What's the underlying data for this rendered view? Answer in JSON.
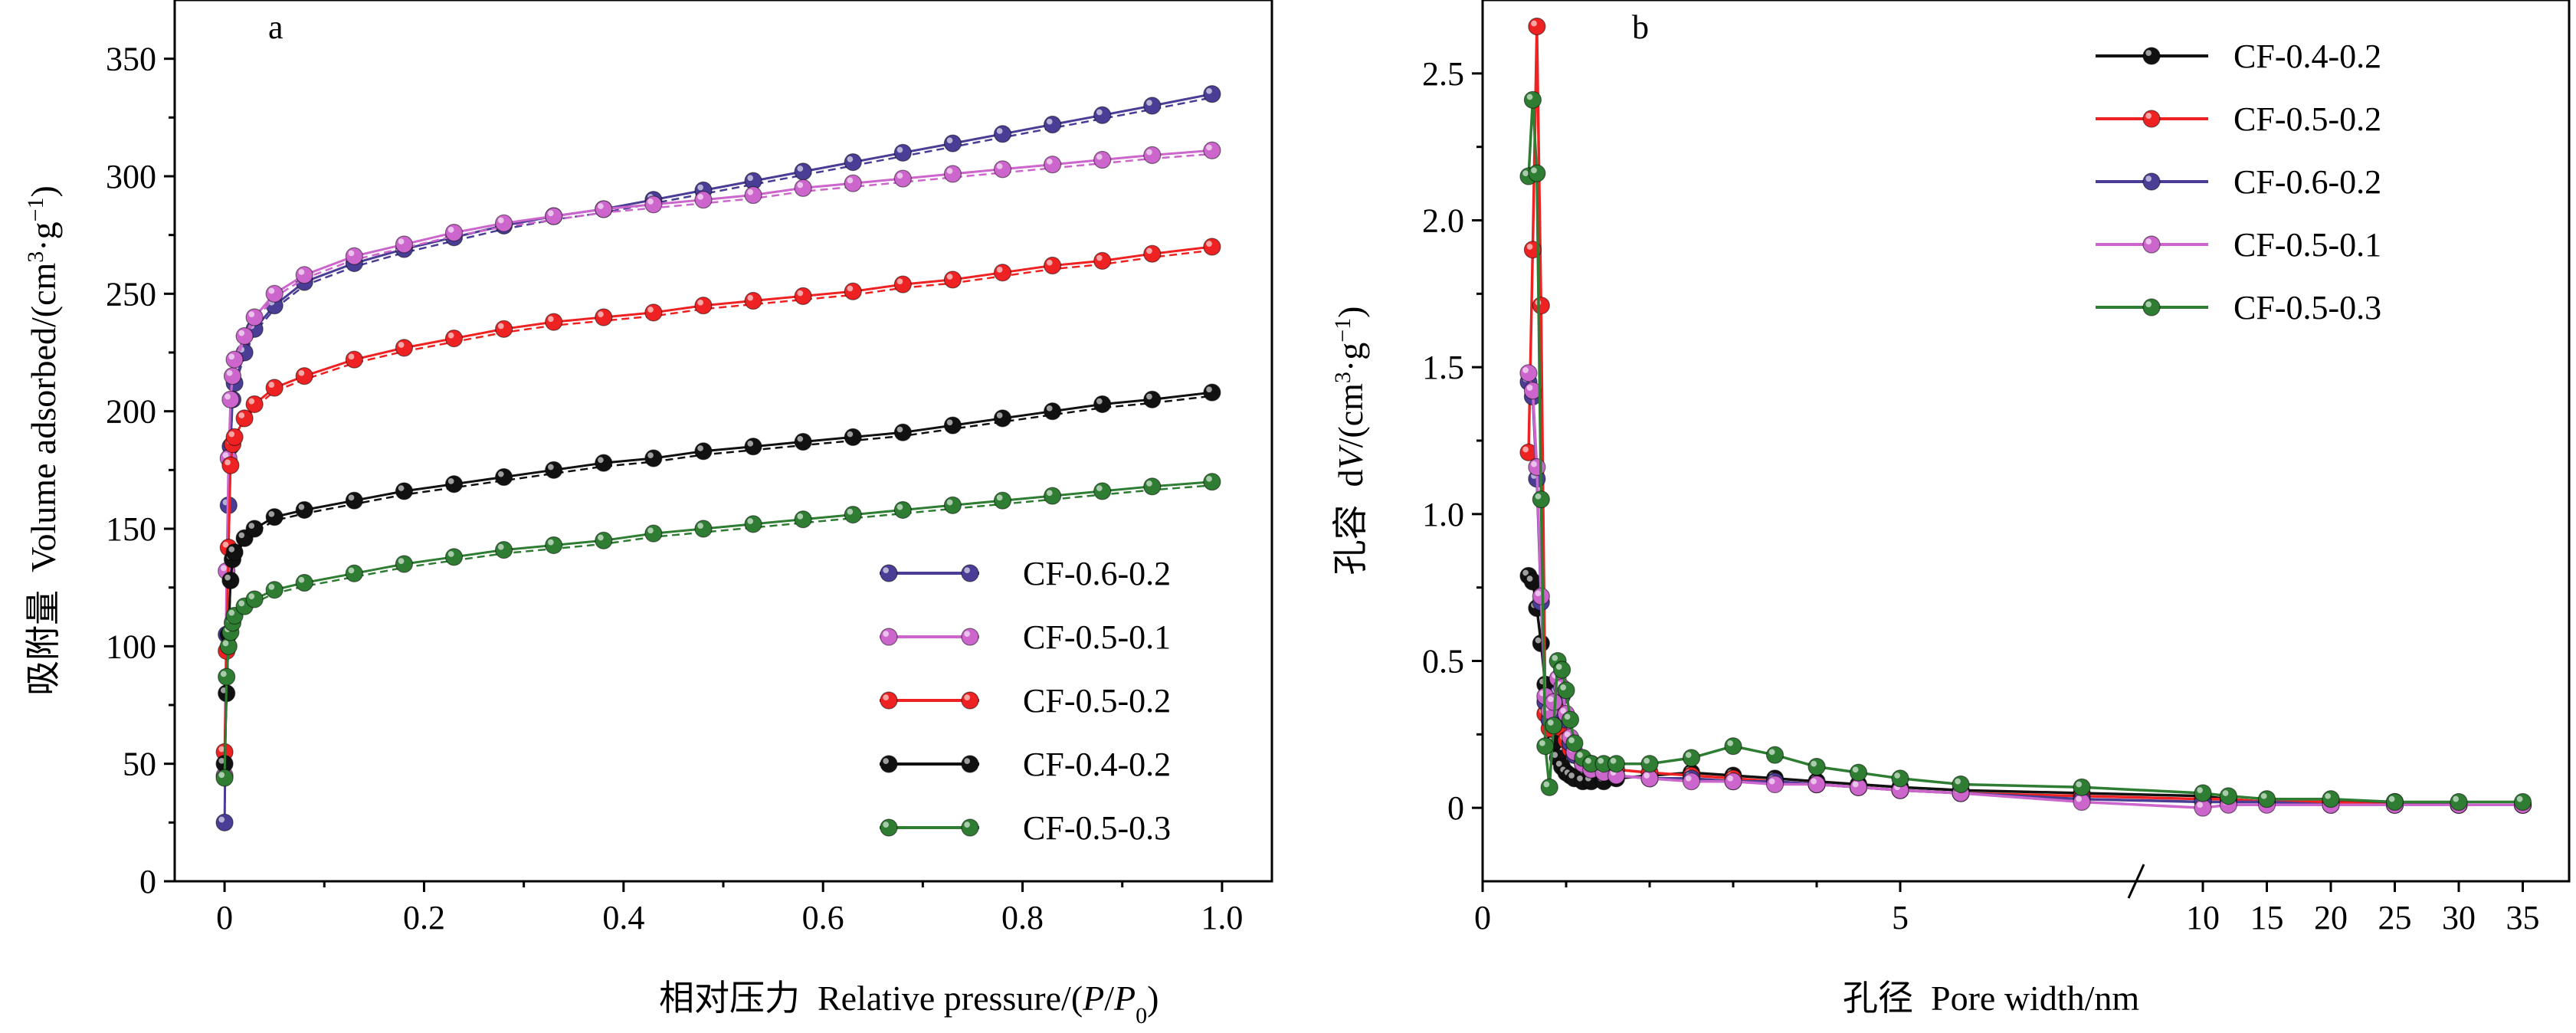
{
  "chart_data": [
    {
      "type": "scatter",
      "panel_label": "a",
      "xlabel": "相对压力  Relative pressure/(P/P0)",
      "ylabel": "吸附量  Volume adsorbed/(cm³·g⁻¹)",
      "xlim": [
        -0.05,
        1.05
      ],
      "ylim": [
        0,
        375
      ],
      "xticks": [
        "0",
        "0.2",
        "0.4",
        "0.6",
        "0.8",
        "1.0"
      ],
      "yticks": [
        "0",
        "50",
        "100",
        "150",
        "200",
        "250",
        "300",
        "350"
      ],
      "legend_position": "bottom-right",
      "series": [
        {
          "name": "CF-0.6-0.2",
          "color": "#4a3d96",
          "x": [
            0,
            0.002,
            0.004,
            0.006,
            0.008,
            0.01,
            0.02,
            0.03,
            0.05,
            0.08,
            0.13,
            0.18,
            0.23,
            0.28,
            0.33,
            0.38,
            0.43,
            0.48,
            0.53,
            0.58,
            0.63,
            0.68,
            0.73,
            0.78,
            0.83,
            0.88,
            0.93,
            0.99
          ],
          "y": [
            25,
            105,
            160,
            185,
            205,
            212,
            225,
            235,
            245,
            255,
            263,
            269,
            274,
            279,
            283,
            286,
            290,
            294,
            298,
            302,
            306,
            310,
            314,
            318,
            322,
            326,
            330,
            335
          ]
        },
        {
          "name": "CF-0.5-0.1",
          "color": "#cc66cc",
          "x": [
            0,
            0.002,
            0.004,
            0.006,
            0.008,
            0.01,
            0.02,
            0.03,
            0.05,
            0.08,
            0.13,
            0.18,
            0.23,
            0.28,
            0.33,
            0.38,
            0.43,
            0.48,
            0.53,
            0.58,
            0.63,
            0.68,
            0.73,
            0.78,
            0.83,
            0.88,
            0.93,
            0.99
          ],
          "y": [
            45,
            132,
            180,
            205,
            215,
            222,
            232,
            240,
            250,
            258,
            266,
            271,
            276,
            280,
            283,
            286,
            288,
            290,
            292,
            295,
            297,
            299,
            301,
            303,
            305,
            307,
            309,
            311
          ]
        },
        {
          "name": "CF-0.5-0.2",
          "color": "#ee2222",
          "x": [
            0,
            0.002,
            0.004,
            0.006,
            0.008,
            0.01,
            0.02,
            0.03,
            0.05,
            0.08,
            0.13,
            0.18,
            0.23,
            0.28,
            0.33,
            0.38,
            0.43,
            0.48,
            0.53,
            0.58,
            0.63,
            0.68,
            0.73,
            0.78,
            0.83,
            0.88,
            0.93,
            0.99
          ],
          "y": [
            55,
            98,
            142,
            177,
            186,
            189,
            197,
            203,
            210,
            215,
            222,
            227,
            231,
            235,
            238,
            240,
            242,
            245,
            247,
            249,
            251,
            254,
            256,
            259,
            262,
            264,
            267,
            270
          ]
        },
        {
          "name": "CF-0.4-0.2",
          "color": "#111111",
          "x": [
            0,
            0.002,
            0.004,
            0.006,
            0.008,
            0.01,
            0.02,
            0.03,
            0.05,
            0.08,
            0.13,
            0.18,
            0.23,
            0.28,
            0.33,
            0.38,
            0.43,
            0.48,
            0.53,
            0.58,
            0.63,
            0.68,
            0.73,
            0.78,
            0.83,
            0.88,
            0.93,
            0.99
          ],
          "y": [
            50,
            80,
            105,
            128,
            137,
            140,
            146,
            150,
            155,
            158,
            162,
            166,
            169,
            172,
            175,
            178,
            180,
            183,
            185,
            187,
            189,
            191,
            194,
            197,
            200,
            203,
            205,
            208
          ]
        },
        {
          "name": "CF-0.5-0.3",
          "color": "#2e7d32",
          "x": [
            0,
            0.002,
            0.004,
            0.006,
            0.008,
            0.01,
            0.02,
            0.03,
            0.05,
            0.08,
            0.13,
            0.18,
            0.23,
            0.28,
            0.33,
            0.38,
            0.43,
            0.48,
            0.53,
            0.58,
            0.63,
            0.68,
            0.73,
            0.78,
            0.83,
            0.88,
            0.93,
            0.99
          ],
          "y": [
            44,
            87,
            100,
            106,
            110,
            113,
            117,
            120,
            124,
            127,
            131,
            135,
            138,
            141,
            143,
            145,
            148,
            150,
            152,
            154,
            156,
            158,
            160,
            162,
            164,
            166,
            168,
            170
          ]
        }
      ]
    },
    {
      "type": "line",
      "panel_label": "b",
      "xlabel": "孔径  Pore width/nm",
      "ylabel": "孔容  dV/(cm³·g⁻¹)",
      "xticks": [
        "0",
        "5",
        "10",
        "15",
        "20",
        "25",
        "30",
        "35"
      ],
      "yticks": [
        "0",
        "0.5",
        "1.0",
        "1.5",
        "2.0",
        "2.5"
      ],
      "ylim": [
        -0.25,
        2.75
      ],
      "x_axis_break": "between 5 and 10",
      "legend_position": "top-right",
      "series": [
        {
          "name": "CF-0.4-0.2",
          "color": "#111111",
          "x": [
            0.55,
            0.6,
            0.65,
            0.7,
            0.75,
            0.8,
            0.85,
            0.9,
            0.95,
            1.0,
            1.05,
            1.1,
            1.2,
            1.3,
            1.45,
            1.6,
            2.0,
            2.5,
            3.0,
            3.5,
            4.0,
            4.5,
            5.0,
            6.0,
            8.0,
            10.0,
            12.0,
            15.0,
            20.0,
            25.0,
            30.0,
            35.0
          ],
          "y": [
            0.79,
            0.77,
            0.68,
            0.56,
            0.42,
            0.3,
            0.22,
            0.17,
            0.14,
            0.12,
            0.11,
            0.1,
            0.09,
            0.09,
            0.09,
            0.1,
            0.11,
            0.12,
            0.11,
            0.1,
            0.09,
            0.08,
            0.07,
            0.06,
            0.05,
            0.04,
            0.03,
            0.02,
            0.02,
            0.02,
            0.01,
            0.01
          ]
        },
        {
          "name": "CF-0.5-0.2",
          "color": "#ee2222",
          "x": [
            0.55,
            0.6,
            0.65,
            0.7,
            0.75,
            0.8,
            0.85,
            0.9,
            0.95,
            1.0,
            1.05,
            1.1,
            1.2,
            1.3,
            1.45,
            1.6,
            2.0,
            2.5,
            3.0,
            3.5,
            4.0,
            4.5,
            5.0,
            6.0,
            8.0,
            10.0,
            12.0,
            15.0,
            20.0,
            25.0,
            30.0,
            35.0
          ],
          "y": [
            1.21,
            1.9,
            2.66,
            1.71,
            0.32,
            0.27,
            0.3,
            0.34,
            0.27,
            0.23,
            0.2,
            0.18,
            0.16,
            0.15,
            0.14,
            0.13,
            0.12,
            0.11,
            0.1,
            0.09,
            0.08,
            0.07,
            0.06,
            0.05,
            0.04,
            0.03,
            0.03,
            0.02,
            0.02,
            0.01,
            0.01,
            0.01
          ]
        },
        {
          "name": "CF-0.6-0.2",
          "color": "#4a3d96",
          "x": [
            0.55,
            0.6,
            0.65,
            0.7,
            0.75,
            0.8,
            0.85,
            0.9,
            0.95,
            1.0,
            1.05,
            1.1,
            1.2,
            1.3,
            1.45,
            1.6,
            2.0,
            2.5,
            3.0,
            3.5,
            4.0,
            4.5,
            5.0,
            6.0,
            8.0,
            10.0,
            12.0,
            15.0,
            20.0,
            25.0,
            30.0,
            35.0
          ],
          "y": [
            1.45,
            1.4,
            1.12,
            0.7,
            0.36,
            0.3,
            0.32,
            0.39,
            0.38,
            0.3,
            0.22,
            0.18,
            0.15,
            0.13,
            0.12,
            0.11,
            0.1,
            0.1,
            0.09,
            0.09,
            0.08,
            0.07,
            0.06,
            0.05,
            0.03,
            0.02,
            0.02,
            0.02,
            0.01,
            0.01,
            0.01,
            0.01
          ]
        },
        {
          "name": "CF-0.5-0.1",
          "color": "#cc66cc",
          "x": [
            0.55,
            0.6,
            0.65,
            0.7,
            0.75,
            0.8,
            0.85,
            0.9,
            0.95,
            1.0,
            1.05,
            1.1,
            1.2,
            1.3,
            1.45,
            1.6,
            2.0,
            2.5,
            3.0,
            3.5,
            4.0,
            4.5,
            5.0,
            6.0,
            8.0,
            10.0,
            12.0,
            15.0,
            20.0,
            25.0,
            30.0,
            35.0
          ],
          "y": [
            1.48,
            1.42,
            1.16,
            0.72,
            0.38,
            0.33,
            0.36,
            0.44,
            0.41,
            0.32,
            0.24,
            0.19,
            0.15,
            0.13,
            0.12,
            0.11,
            0.1,
            0.09,
            0.09,
            0.08,
            0.08,
            0.07,
            0.06,
            0.05,
            0.02,
            0.0,
            0.01,
            0.01,
            0.01,
            0.01,
            0.01,
            0.01
          ]
        },
        {
          "name": "CF-0.5-0.3",
          "color": "#2e7d32",
          "x": [
            0.55,
            0.6,
            0.65,
            0.7,
            0.75,
            0.8,
            0.85,
            0.9,
            0.95,
            1.0,
            1.05,
            1.1,
            1.2,
            1.3,
            1.45,
            1.6,
            2.0,
            2.5,
            3.0,
            3.5,
            4.0,
            4.5,
            5.0,
            6.0,
            8.0,
            10.0,
            12.0,
            15.0,
            20.0,
            25.0,
            30.0,
            35.0
          ],
          "y": [
            2.15,
            2.41,
            2.16,
            1.05,
            0.21,
            0.07,
            0.28,
            0.5,
            0.47,
            0.4,
            0.3,
            0.22,
            0.17,
            0.15,
            0.15,
            0.15,
            0.15,
            0.17,
            0.21,
            0.18,
            0.14,
            0.12,
            0.1,
            0.08,
            0.07,
            0.05,
            0.04,
            0.03,
            0.03,
            0.02,
            0.02,
            0.02
          ]
        }
      ]
    }
  ]
}
